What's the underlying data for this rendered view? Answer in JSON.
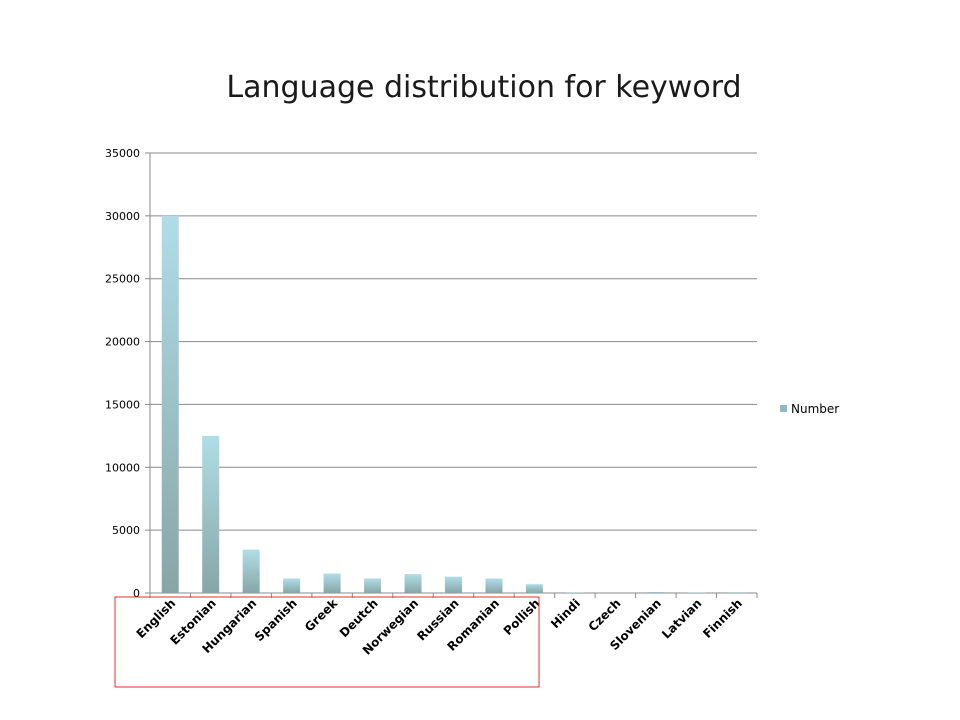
{
  "chart_data": {
    "type": "bar",
    "title": "Language distribution for keyword",
    "xlabel": "",
    "ylabel": "",
    "categories": [
      "English",
      "Estonian",
      "Hungarian",
      "Spanish",
      "Greek",
      "Deutch",
      "Norwegian",
      "Russian",
      "Romanian",
      "Pollish",
      "Hindi",
      "Czech",
      "Slovenian",
      "Latvian",
      "Finnish"
    ],
    "series": [
      {
        "name": "Number",
        "values": [
          30000,
          12500,
          3450,
          1150,
          1550,
          1150,
          1500,
          1300,
          1150,
          700,
          50,
          0,
          80,
          50,
          60
        ]
      }
    ],
    "ylim": [
      0,
      35000
    ],
    "yticks": [
      0,
      5000,
      10000,
      15000,
      20000,
      25000,
      30000,
      35000
    ],
    "grid": true,
    "legend_position": "right",
    "colors": {
      "bar_top": "#b0dde6",
      "bar_bottom": "#87a6a6",
      "legend_swatch": "#8fb9c6",
      "gridline": "#8a8a8a",
      "highlight_box": "#e03030"
    }
  }
}
